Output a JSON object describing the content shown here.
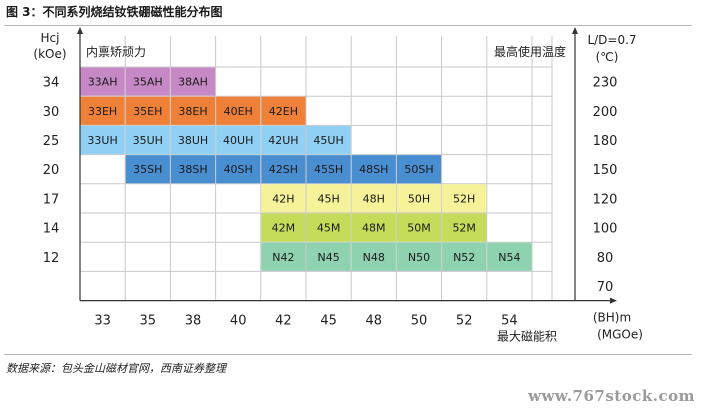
{
  "title": "图 3：不同系列烧结钕铁硼磁性能分布图",
  "source": "数据来源：包头金山磁材官网，西南证券整理",
  "watermark": "www.767stock.com",
  "chart_data": {
    "type": "table",
    "y_axis_label": [
      "Hcj",
      "(kOe)"
    ],
    "y_ticks": [
      "34",
      "30",
      "25",
      "20",
      "17",
      "14",
      "12"
    ],
    "right_axis_label": [
      "L/D=0.7",
      "(℃)"
    ],
    "right_ticks": [
      "230",
      "200",
      "180",
      "150",
      "120",
      "100",
      "80",
      "70"
    ],
    "x_axis_label": [
      "(BH)m",
      "(MGOe)"
    ],
    "x_ticks": [
      "33",
      "35",
      "38",
      "40",
      "42",
      "45",
      "48",
      "50",
      "52",
      "54"
    ],
    "top_left_caption": "内禀矫顽力",
    "top_right_caption": "最高使用温度",
    "bottom_caption": "最大磁能积",
    "series": [
      {
        "suffix": "AH",
        "hcj": "34",
        "color": "#c689c6",
        "grades": [
          "33AH",
          "35AH",
          "38AH"
        ],
        "bh": [
          "33",
          "35",
          "38"
        ]
      },
      {
        "suffix": "EH",
        "hcj": "30",
        "color": "#ef8038",
        "grades": [
          "33EH",
          "35EH",
          "38EH",
          "40EH",
          "42EH"
        ],
        "bh": [
          "33",
          "35",
          "38",
          "40",
          "42"
        ]
      },
      {
        "suffix": "UH",
        "hcj": "25",
        "color": "#8fd0f4",
        "grades": [
          "33UH",
          "35UH",
          "38UH",
          "40UH",
          "42UH",
          "45UH"
        ],
        "bh": [
          "33",
          "35",
          "38",
          "40",
          "42",
          "45"
        ]
      },
      {
        "suffix": "SH",
        "hcj": "20",
        "color": "#4a8ed2",
        "grades": [
          "35SH",
          "38SH",
          "40SH",
          "42SH",
          "45SH",
          "48SH",
          "50SH"
        ],
        "bh": [
          "35",
          "38",
          "40",
          "42",
          "45",
          "48",
          "50"
        ]
      },
      {
        "suffix": "H",
        "hcj": "17",
        "color": "#f6f29a",
        "grades": [
          "42H",
          "45H",
          "48H",
          "50H",
          "52H"
        ],
        "bh": [
          "42",
          "45",
          "48",
          "50",
          "52"
        ]
      },
      {
        "suffix": "M",
        "hcj": "14",
        "color": "#c4dc5a",
        "grades": [
          "42M",
          "45M",
          "48M",
          "50M",
          "52M"
        ],
        "bh": [
          "42",
          "45",
          "48",
          "50",
          "52"
        ]
      },
      {
        "suffix": "N",
        "hcj": "12",
        "color": "#8fd2b0",
        "grades": [
          "N42",
          "N45",
          "N48",
          "N50",
          "N52",
          "N54"
        ],
        "bh": [
          "42",
          "45",
          "48",
          "50",
          "52",
          "54"
        ]
      }
    ]
  }
}
